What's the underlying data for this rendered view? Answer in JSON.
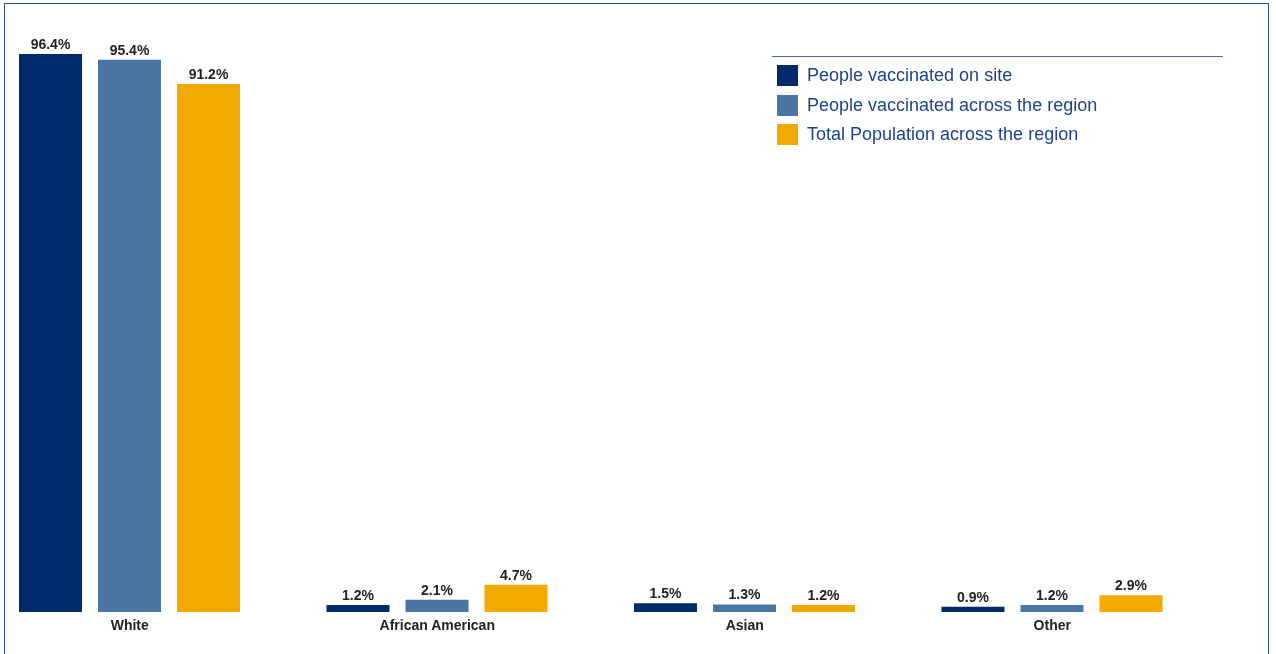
{
  "chart_data": {
    "type": "bar",
    "categories": [
      "White",
      "African American",
      "Asian",
      "Other"
    ],
    "series": [
      {
        "name": "People vaccinated on site",
        "color": "#002b6b",
        "values": [
          96.4,
          1.2,
          1.5,
          0.9
        ],
        "value_labels": [
          "96.4%",
          "1.2%",
          "1.5%",
          "0.9%"
        ]
      },
      {
        "name": "People vaccinated across the region",
        "color": "#4a76a6",
        "values": [
          95.4,
          2.1,
          1.3,
          1.2
        ],
        "value_labels": [
          "95.4%",
          "2.1%",
          "1.3%",
          "1.2%"
        ]
      },
      {
        "name": "Total Population across the region",
        "color": "#f2a900",
        "values": [
          91.2,
          4.7,
          1.2,
          2.9
        ],
        "value_labels": [
          "91.2%",
          "4.7%",
          "1.2%",
          "2.9%"
        ]
      }
    ],
    "legend": "top right",
    "grid": false
  }
}
